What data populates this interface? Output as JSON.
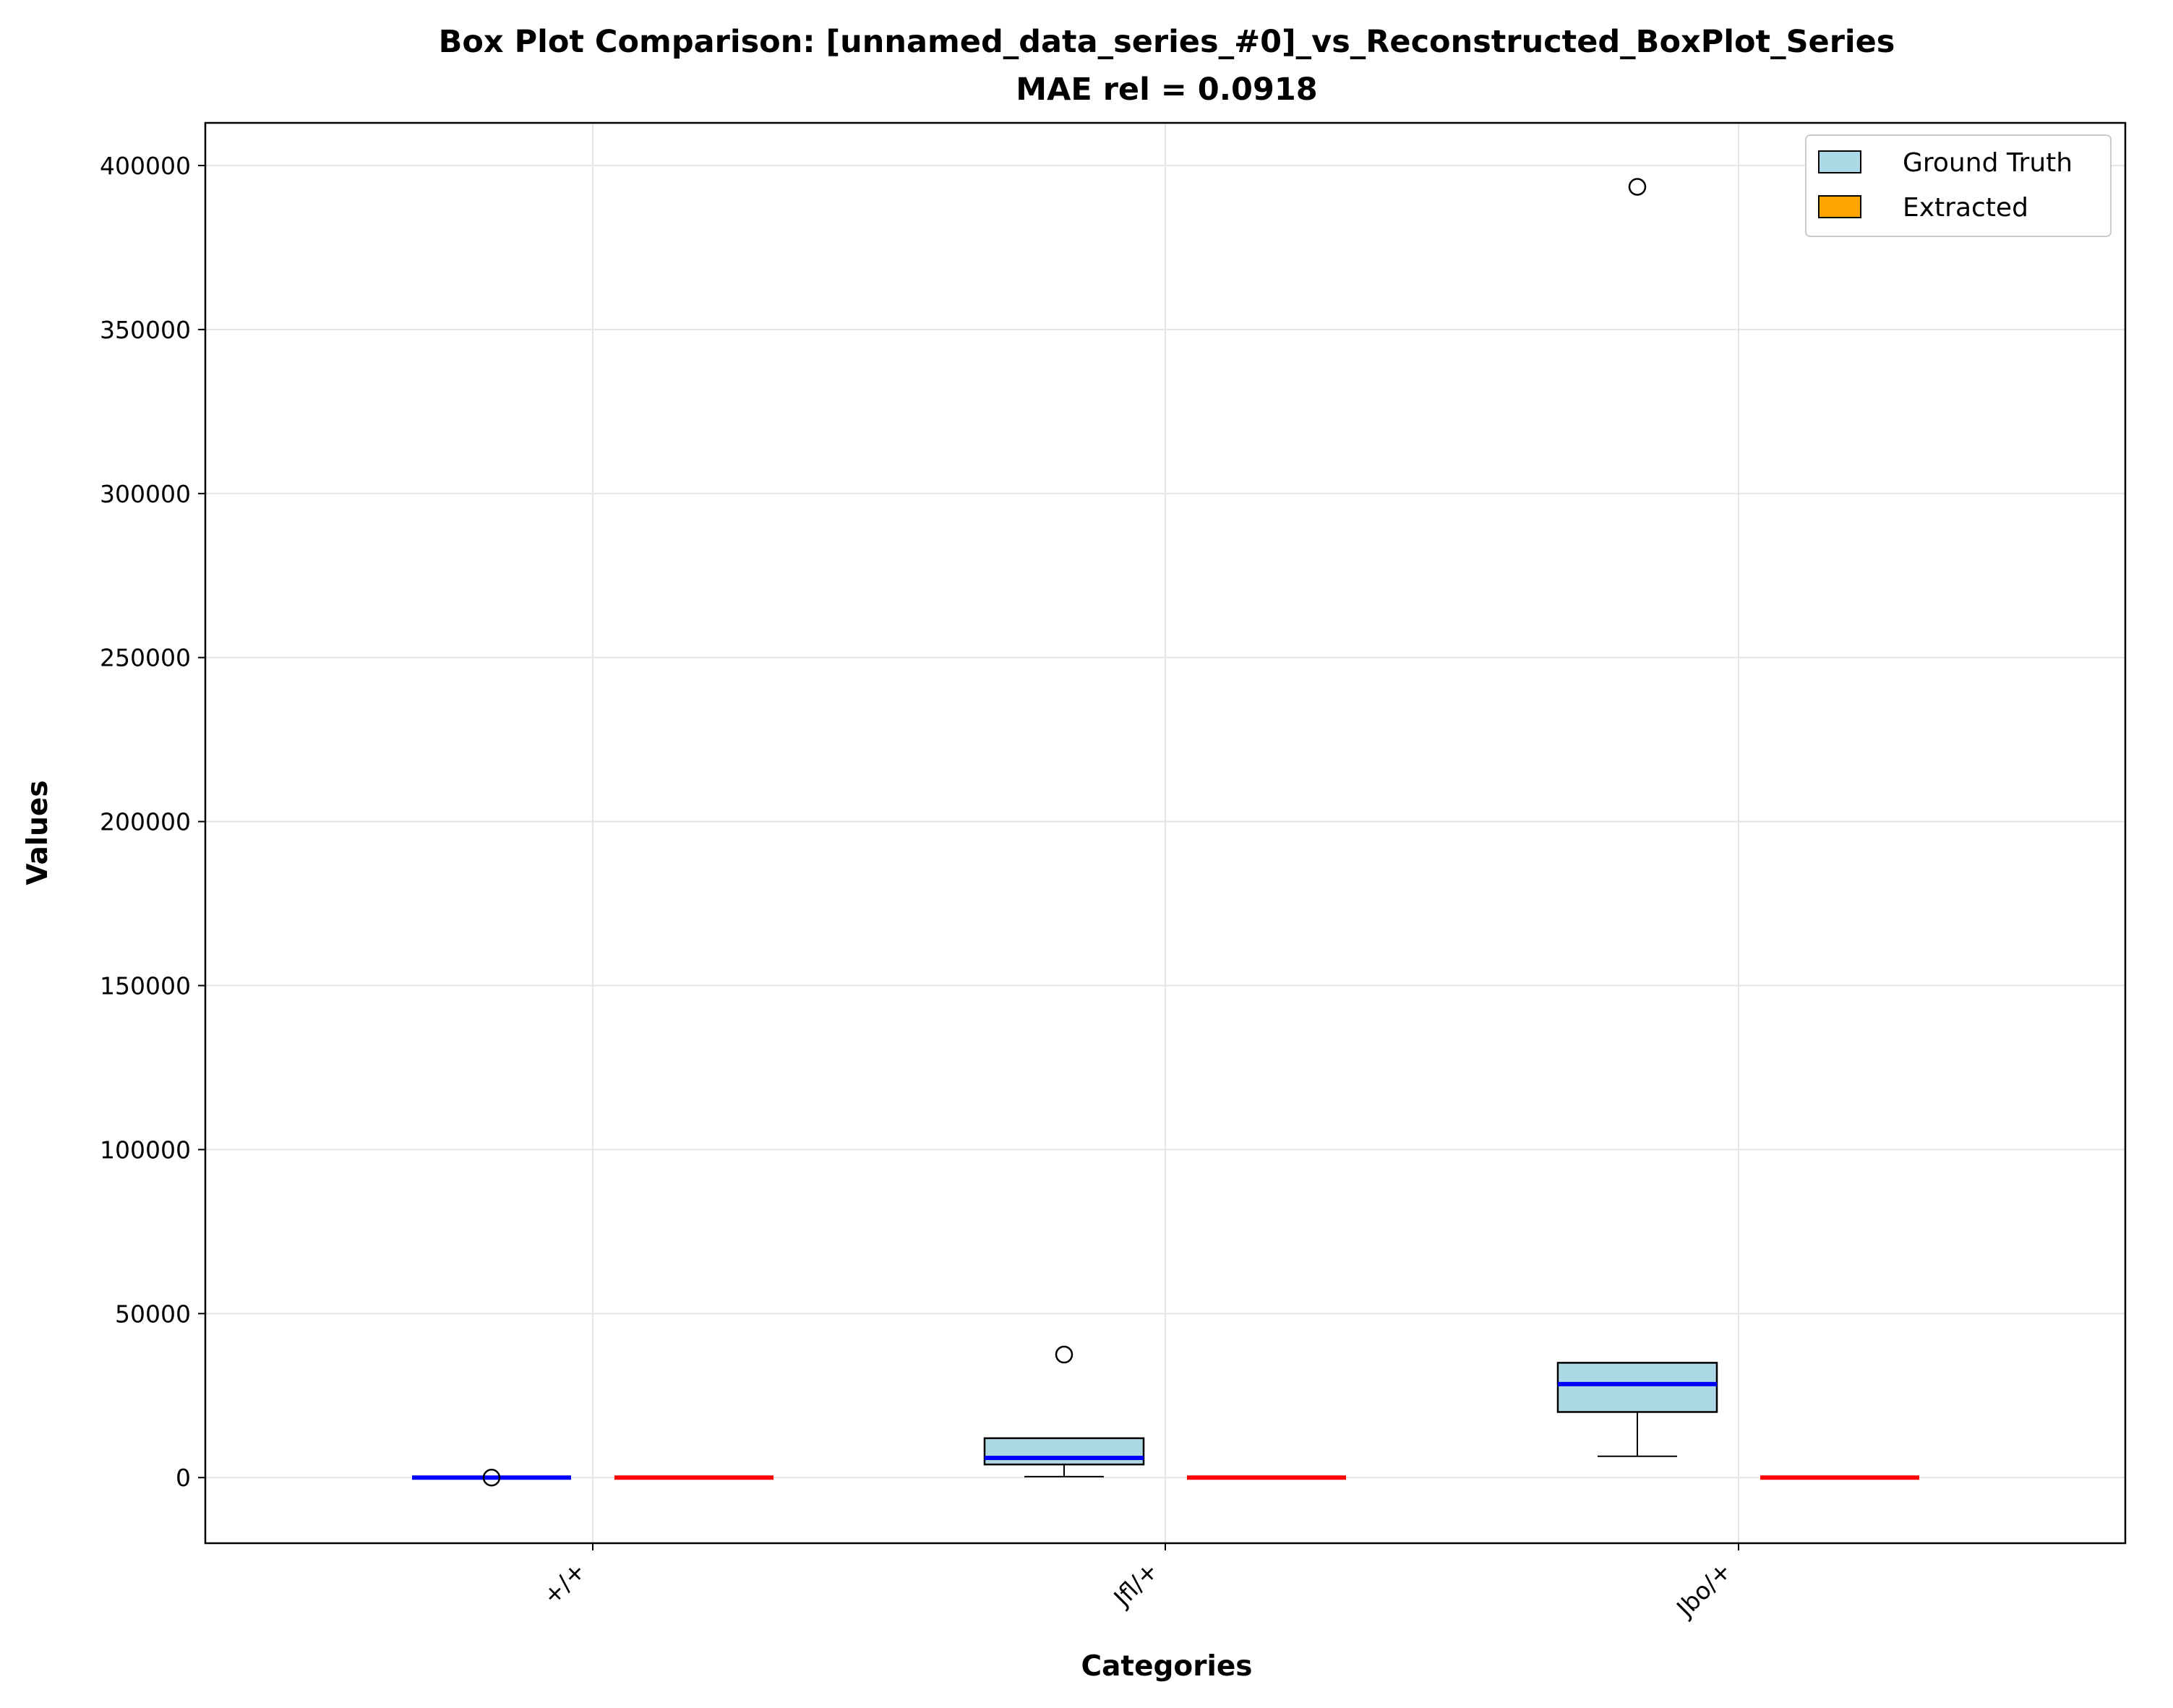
{
  "chart_data": {
    "type": "box",
    "title": "Box Plot Comparison: [unnamed_data_series_#0]_vs_Reconstructed_BoxPlot_Series",
    "subtitle": "MAE rel = 0.0918",
    "xlabel": "Categories",
    "ylabel": "Values",
    "categories": [
      "+/+",
      "Jfl/+",
      "Jbo/+"
    ],
    "ylim": [
      -20000,
      413000
    ],
    "yticks": [
      0,
      50000,
      100000,
      150000,
      200000,
      250000,
      300000,
      350000,
      400000
    ],
    "grid": true,
    "legend_position": "top-right",
    "series": [
      {
        "name": "Ground Truth",
        "color": "#add8e6",
        "median_color": "#0000ff",
        "boxes": [
          {
            "whisker_low": 0,
            "q1": 0,
            "median": 0,
            "q3": 0,
            "whisker_high": 0,
            "outliers": [
              0
            ]
          },
          {
            "whisker_low": 300,
            "q1": 4000,
            "median": 6000,
            "q3": 12000,
            "whisker_high": 12000,
            "outliers": [
              37500
            ]
          },
          {
            "whisker_low": 6500,
            "q1": 20000,
            "median": 28500,
            "q3": 35000,
            "whisker_high": 35000,
            "outliers": [
              393500
            ]
          }
        ]
      },
      {
        "name": "Extracted",
        "color": "#ffa500",
        "median_color": "#ff0000",
        "boxes": [
          {
            "whisker_low": 0,
            "q1": 0,
            "median": 0,
            "q3": 0,
            "whisker_high": 0,
            "outliers": []
          },
          {
            "whisker_low": 0,
            "q1": 0,
            "median": 0,
            "q3": 0,
            "whisker_high": 0,
            "outliers": []
          },
          {
            "whisker_low": 0,
            "q1": 0,
            "median": 0,
            "q3": 0,
            "whisker_high": 0,
            "outliers": []
          }
        ]
      }
    ]
  }
}
